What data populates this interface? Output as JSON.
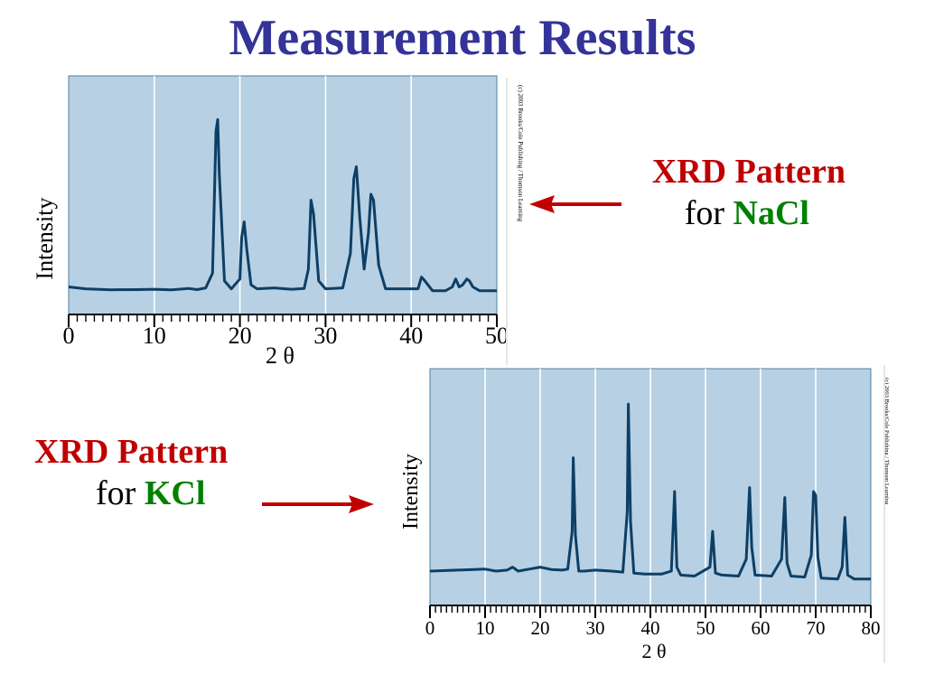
{
  "slide": {
    "title": "Measurement Results"
  },
  "labels": {
    "nacl": {
      "title": "XRD Pattern",
      "prefix": "for ",
      "compound": "NaCl"
    },
    "kcl": {
      "title": "XRD Pattern",
      "prefix": "for ",
      "compound": "KCl"
    }
  },
  "colors": {
    "title": "#333399",
    "label_title": "#c00000",
    "compound": "#008000",
    "arrow": "#c00000",
    "plot_bg": "#b7d0e3",
    "plot_line": "#0d3f66",
    "grid": "#ffffff"
  },
  "chart_data": [
    {
      "type": "line",
      "title": "",
      "ylabel": "Intensity",
      "xlabel": "2 θ",
      "xlim": [
        0,
        50
      ],
      "ylim": [
        0,
        100
      ],
      "xticks": [
        0,
        10,
        20,
        30,
        40,
        50
      ],
      "grid": true,
      "copyright": "(c) 2003 Brooks/Cole Publishing / Thomson Learning",
      "x": [
        0,
        2,
        5,
        8,
        10,
        12,
        14,
        15,
        16,
        16.8,
        17.2,
        17.4,
        17.6,
        18.2,
        19,
        20,
        20.2,
        20.5,
        20.8,
        21.3,
        22,
        24,
        26,
        27.5,
        28.0,
        28.3,
        28.6,
        29.2,
        30,
        32,
        32.9,
        33.3,
        33.6,
        34.0,
        34.5,
        35.0,
        35.3,
        35.6,
        36.2,
        37,
        39,
        40.8,
        41.2,
        41.6,
        42.5,
        44,
        44.8,
        45.2,
        45.6,
        46,
        46.5,
        46.8,
        47.2,
        48,
        50
      ],
      "series": [
        {
          "values": [
            3,
            2,
            1.5,
            1.6,
            1.8,
            1.5,
            2.2,
            1.6,
            2.5,
            10,
            82,
            88,
            60,
            6,
            2,
            7,
            28,
            36,
            22,
            4,
            2,
            2.5,
            1.8,
            2.2,
            12,
            47,
            40,
            6,
            2,
            2.5,
            20,
            58,
            64,
            38,
            12,
            30,
            50,
            47,
            14,
            2,
            2,
            2,
            8,
            6,
            1,
            1,
            3,
            7,
            3,
            4,
            7,
            6,
            3,
            1,
            1
          ]
        }
      ]
    },
    {
      "type": "line",
      "title": "",
      "ylabel": "Intensity",
      "xlabel": "2 θ",
      "xlim": [
        0,
        80
      ],
      "ylim": [
        0,
        100
      ],
      "xticks": [
        0,
        10,
        20,
        30,
        40,
        50,
        60,
        70,
        80
      ],
      "grid": true,
      "copyright": "(c) 2003 Brooks/Cole Publishing / Thomson Learning",
      "x": [
        0,
        5,
        10,
        12,
        14,
        15,
        16,
        18,
        20,
        22,
        24,
        25,
        25.8,
        26.0,
        26.4,
        27,
        28,
        30,
        33,
        35,
        35.8,
        36.0,
        36.4,
        37,
        39,
        42,
        43.8,
        44.4,
        44.8,
        45.5,
        48,
        50.8,
        51.3,
        51.8,
        53,
        56,
        57.4,
        58.0,
        58.4,
        59,
        62,
        63.8,
        64.4,
        64.8,
        65.5,
        68,
        69.2,
        69.6,
        70.0,
        70.4,
        71,
        74,
        74.8,
        75.3,
        75.8,
        77,
        80
      ],
      "series": [
        {
          "values": [
            10,
            10.5,
            11,
            10,
            10.5,
            12,
            10,
            11,
            12,
            10.8,
            10.5,
            11,
            30,
            67,
            28,
            10,
            10,
            10.5,
            10,
            9.5,
            40,
            94,
            35,
            9,
            8.5,
            8.5,
            10,
            50,
            12,
            8,
            7.5,
            12,
            30,
            9,
            8,
            7.5,
            16,
            52,
            22,
            8,
            7.5,
            16,
            47,
            14,
            7.5,
            7,
            18,
            50,
            48,
            17,
            6.5,
            6,
            12,
            37,
            8,
            6,
            6
          ]
        }
      ]
    }
  ]
}
